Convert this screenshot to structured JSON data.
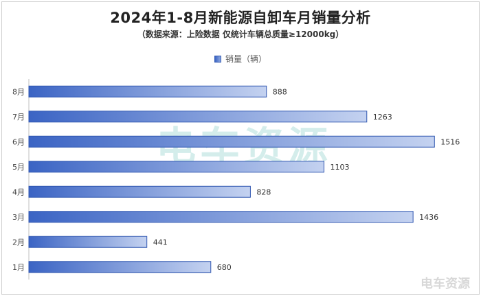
{
  "title": "2024年1-8月新能源自卸车月销量分析",
  "subtitle": "（数据来源：上险数据 仅统计车辆总质量≥12000kg）",
  "legend_label": "销量（辆）",
  "watermark_text": "电车资源",
  "corner_logo_text": "电车资源",
  "colors": {
    "bar_start": "#3b64c4",
    "bar_end": "#c4d2f0",
    "bar_border": "#2f56b0",
    "watermark": "#9fd7d2"
  },
  "chart_data": {
    "type": "bar",
    "orientation": "horizontal",
    "title": "2024年1-8月新能源自卸车月销量分析",
    "subtitle": "（数据来源：上险数据 仅统计车辆总质量≥12000kg）",
    "categories": [
      "8月",
      "7月",
      "6月",
      "5月",
      "4月",
      "3月",
      "2月",
      "1月"
    ],
    "series": [
      {
        "name": "销量（辆）",
        "values": [
          888,
          1263,
          1516,
          1103,
          828,
          1436,
          441,
          680
        ]
      }
    ],
    "xlim": [
      0,
      1600
    ],
    "grid": false,
    "legend": "top-center",
    "data_labels": true
  }
}
